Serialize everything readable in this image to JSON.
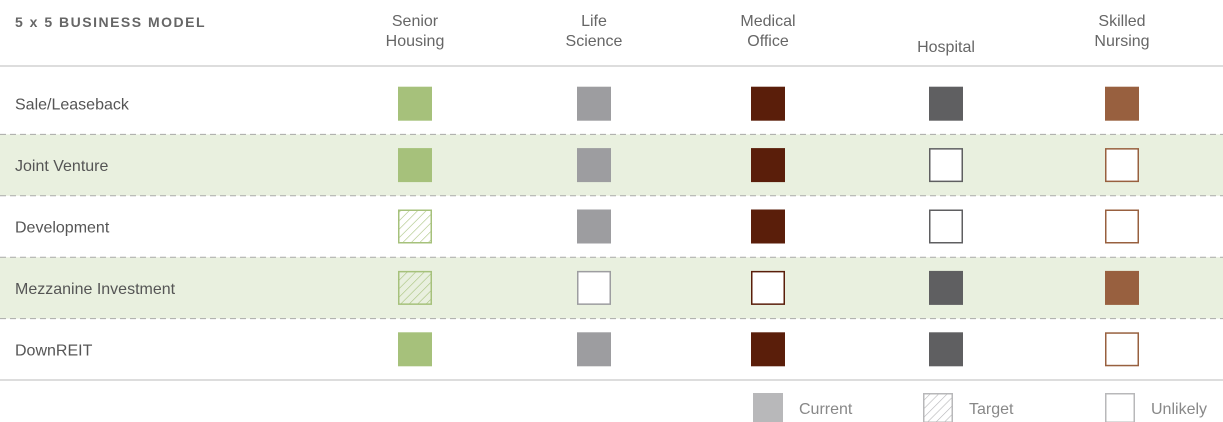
{
  "header": {
    "title": "5 x 5 BUSINESS MODEL"
  },
  "columns": [
    {
      "lines": [
        "Senior",
        "Housing"
      ],
      "color": "#a6c17b"
    },
    {
      "lines": [
        "Life",
        "Science"
      ],
      "color": "#9d9da0"
    },
    {
      "lines": [
        "Medical",
        "Office"
      ],
      "color": "#5a1e0a"
    },
    {
      "lines": [
        "Hospital"
      ],
      "color": "#5f5f61"
    },
    {
      "lines": [
        "Skilled",
        "Nursing"
      ],
      "color": "#98603f"
    }
  ],
  "rows": [
    {
      "label": "Sale/Leaseback",
      "cells": [
        "Current",
        "Current",
        "Current",
        "Current",
        "Current"
      ]
    },
    {
      "label": "Joint Venture",
      "cells": [
        "Current",
        "Current",
        "Current",
        "Unlikely",
        "Unlikely"
      ]
    },
    {
      "label": "Development",
      "cells": [
        "Target",
        "Current",
        "Current",
        "Unlikely",
        "Unlikely"
      ]
    },
    {
      "label": "Mezzanine Investment",
      "cells": [
        "Target",
        "Unlikely",
        "Unlikely",
        "Current",
        "Current"
      ]
    },
    {
      "label": "DownREIT",
      "cells": [
        "Current",
        "Current",
        "Current",
        "Current",
        "Unlikely"
      ]
    }
  ],
  "legend": {
    "color": "#b8b8ba",
    "items": [
      "Current",
      "Target",
      "Unlikely"
    ]
  }
}
